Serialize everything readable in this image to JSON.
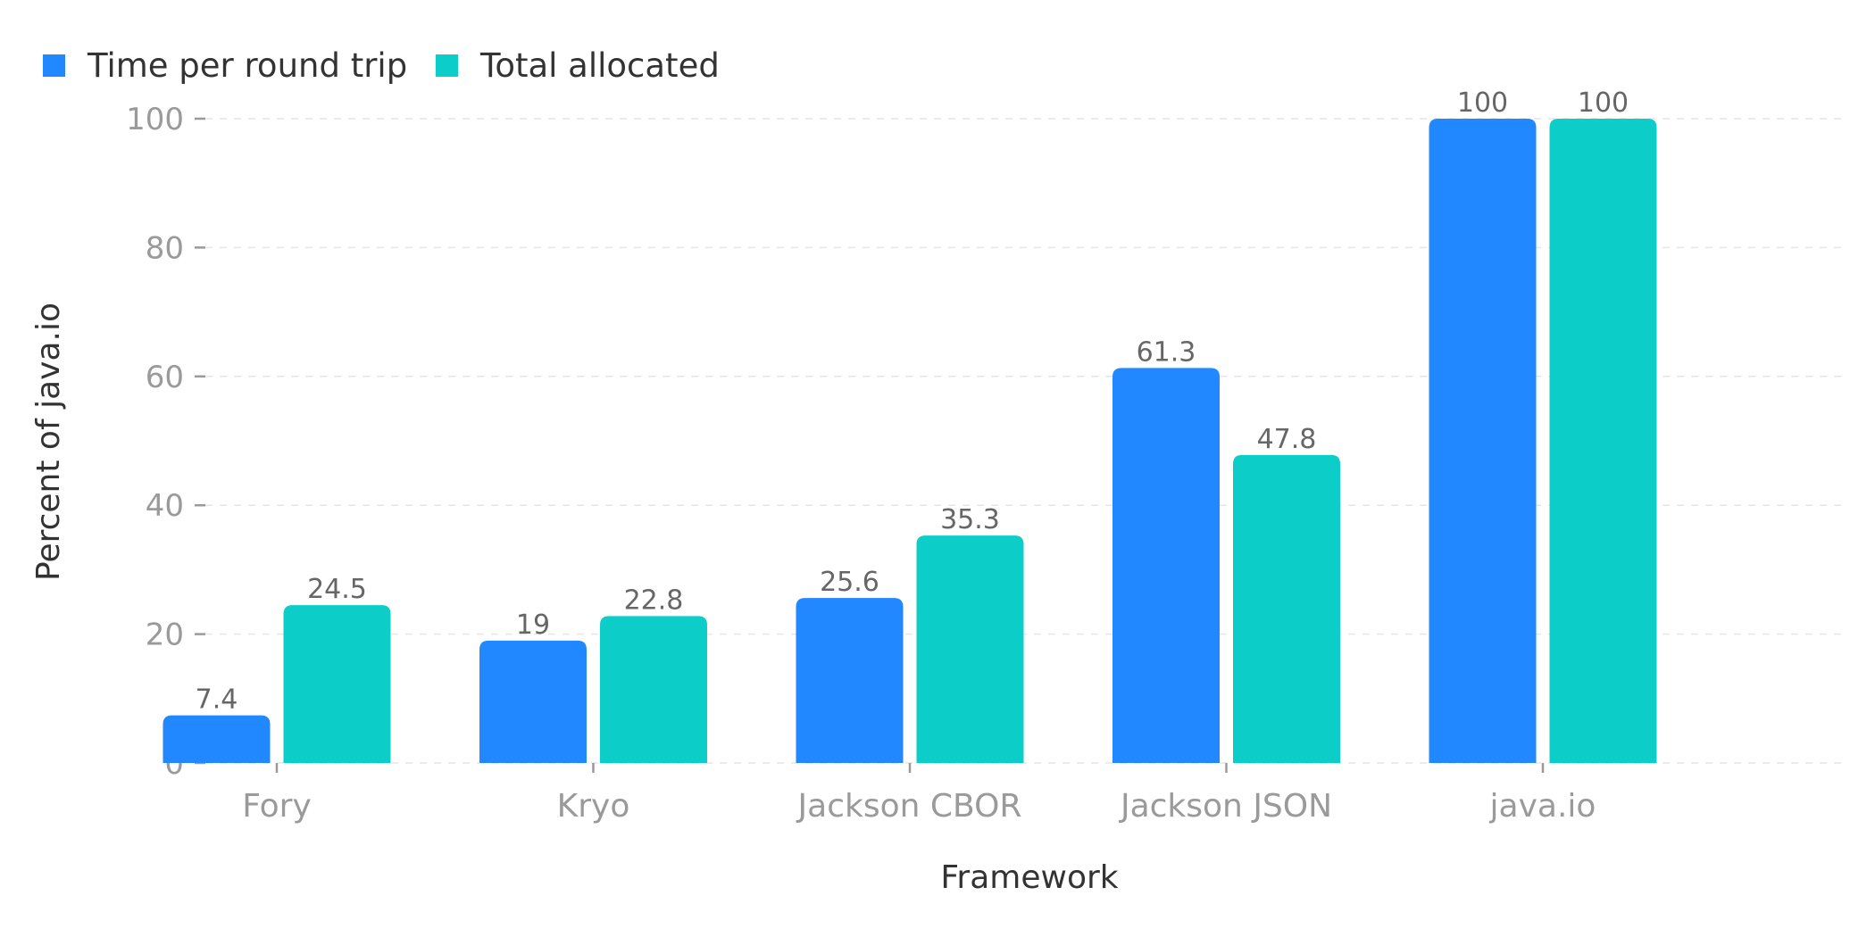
{
  "chart_data": {
    "type": "bar",
    "categories": [
      "Fory",
      "Kryo",
      "Jackson CBOR",
      "Jackson JSON",
      "java.io"
    ],
    "series": [
      {
        "name": "Time per round trip",
        "values": [
          7.4,
          19,
          25.6,
          61.3,
          100
        ],
        "color": "#2288ff"
      },
      {
        "name": "Total allocated",
        "values": [
          24.5,
          22.8,
          35.3,
          47.8,
          100
        ],
        "color": "#0dcdc8"
      }
    ],
    "data_labels": [
      [
        "7.4",
        "19",
        "25.6",
        "61.3",
        "100"
      ],
      [
        "24.5",
        "22.8",
        "35.3",
        "47.8",
        "100"
      ]
    ],
    "xlabel": "Framework",
    "ylabel": "Percent of java.io",
    "ylim": [
      0,
      100
    ],
    "yticks": [
      0,
      20,
      40,
      60,
      80,
      100
    ],
    "grid": true,
    "legend_position": "top-left"
  }
}
